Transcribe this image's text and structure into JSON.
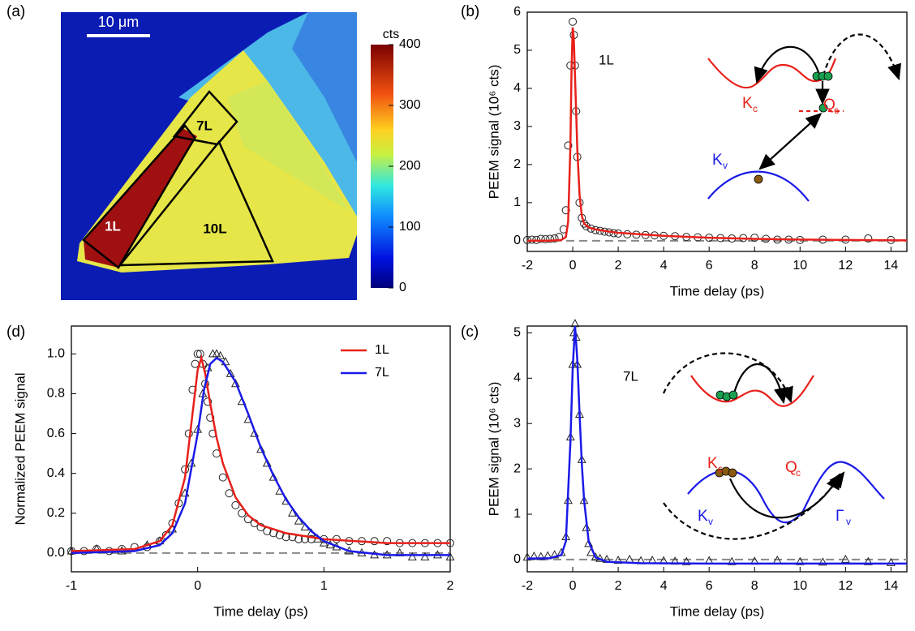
{
  "chart_data": [
    {
      "type": "image",
      "panel": "(a)",
      "scale_bar": "10 μm",
      "regions": [
        "1L",
        "7L",
        "10L"
      ],
      "colorbar": {
        "title": "cts",
        "lim": [
          0,
          400
        ],
        "ticks": [
          0,
          100,
          200,
          300,
          400
        ]
      }
    },
    {
      "type": "line",
      "panel": "(b)",
      "xlabel": "Time delay (ps)",
      "ylabel": "PEEM signal (10⁶ cts)",
      "xlim": [
        -2,
        14.7
      ],
      "xticks": [
        -2,
        0,
        2,
        4,
        6,
        8,
        10,
        12,
        14
      ],
      "ylim": [
        -0.28,
        6
      ],
      "yticks": [
        0,
        1,
        2,
        3,
        4,
        5,
        6
      ],
      "hline": 0,
      "annotation": "1L",
      "inset_labels": [
        {
          "text": "K",
          "sub": "c",
          "color": "#e8201a"
        },
        {
          "text": "Q",
          "sub": "c",
          "color": "#e8201a"
        },
        {
          "text": "K",
          "sub": "v",
          "color": "#1a1ae8"
        }
      ],
      "series": [
        {
          "marker": "circle",
          "color": "#222222",
          "x": [
            -2,
            -1.8,
            -1.6,
            -1.4,
            -1.2,
            -1,
            -0.8,
            -0.6,
            -0.4,
            -0.3,
            -0.2,
            -0.1,
            0,
            0.05,
            0.1,
            0.15,
            0.2,
            0.3,
            0.4,
            0.5,
            0.6,
            0.8,
            1,
            1.2,
            1.4,
            1.6,
            1.8,
            2,
            2.4,
            2.8,
            3.2,
            3.6,
            4,
            4.5,
            5,
            5.5,
            6,
            6.5,
            7,
            7.5,
            8,
            8.5,
            9,
            9.5,
            10,
            11,
            12,
            13,
            14
          ],
          "values": [
            0.02,
            0.03,
            0.02,
            0.05,
            0.04,
            0.05,
            0.06,
            0.1,
            0.3,
            0.8,
            2.5,
            4.6,
            5.75,
            5.4,
            4.6,
            3.4,
            2.2,
            1.0,
            0.6,
            0.45,
            0.38,
            0.32,
            0.28,
            0.26,
            0.24,
            0.22,
            0.2,
            0.19,
            0.17,
            0.16,
            0.15,
            0.14,
            0.13,
            0.12,
            0.1,
            0.09,
            0.08,
            0.07,
            0.06,
            0.07,
            0.08,
            0.05,
            0.03,
            0.03,
            0.02,
            0.03,
            0.03,
            0.06,
            0.02
          ]
        },
        {
          "color": "#e8201a",
          "x": [
            -2,
            -1,
            -0.5,
            -0.3,
            -0.2,
            -0.1,
            -0.05,
            0,
            0.05,
            0.1,
            0.2,
            0.3,
            0.4,
            0.5,
            0.7,
            1,
            1.5,
            2,
            3,
            4,
            6,
            8,
            10,
            12,
            14.7
          ],
          "values": [
            0,
            0,
            0.02,
            0.1,
            0.5,
            2.5,
            4.5,
            5.6,
            5.3,
            4.3,
            2.4,
            1.2,
            0.65,
            0.45,
            0.35,
            0.3,
            0.25,
            0.21,
            0.17,
            0.13,
            0.08,
            0.05,
            0.03,
            0.02,
            0.01
          ]
        }
      ]
    },
    {
      "type": "line",
      "panel": "(c)",
      "xlabel": "Time delay (ps)",
      "ylabel": "PEEM signal (10⁶ cts)",
      "xlim": [
        -2,
        14.7
      ],
      "xticks": [
        -2,
        0,
        2,
        4,
        6,
        8,
        10,
        12,
        14
      ],
      "ylim": [
        -0.27,
        5.15
      ],
      "yticks": [
        0,
        1,
        2,
        3,
        4,
        5
      ],
      "hline": 0,
      "annotation": "7L",
      "inset_labels": [
        {
          "text": "K",
          "sub": "c",
          "color": "#e8201a"
        },
        {
          "text": "Q",
          "sub": "c",
          "color": "#e8201a"
        },
        {
          "text": "K",
          "sub": "v",
          "color": "#1a1ae8"
        },
        {
          "text": "Γ",
          "sub": "v",
          "color": "#1a1ae8"
        }
      ],
      "series": [
        {
          "marker": "triangle",
          "color": "#222222",
          "x": [
            -2,
            -1.7,
            -1.4,
            -1.1,
            -0.8,
            -0.5,
            -0.3,
            -0.2,
            -0.1,
            0,
            0.05,
            0.1,
            0.15,
            0.2,
            0.3,
            0.4,
            0.5,
            0.6,
            0.7,
            0.8,
            1,
            1.2,
            1.5,
            2,
            2.5,
            3,
            3.5,
            4,
            4.5,
            5,
            6,
            7,
            8,
            9,
            10,
            11,
            12,
            13,
            14
          ],
          "values": [
            0.05,
            0.07,
            0.06,
            0.08,
            0.1,
            0.15,
            0.5,
            1.3,
            2.7,
            4.3,
            5.0,
            5.2,
            4.9,
            4.3,
            3.2,
            2.2,
            1.3,
            0.7,
            0.35,
            0.15,
            0.05,
            0.02,
            0,
            -0.02,
            0,
            -0.03,
            -0.02,
            -0.03,
            -0.04,
            -0.05,
            -0.03,
            -0.05,
            -0.04,
            -0.02,
            -0.05,
            -0.06,
            0,
            -0.05,
            -0.07
          ]
        },
        {
          "color": "#1a1ae8",
          "x": [
            -2,
            -1,
            -0.5,
            -0.3,
            -0.1,
            0,
            0.1,
            0.2,
            0.3,
            0.4,
            0.5,
            0.7,
            1,
            1.5,
            3,
            6,
            10,
            14.7
          ],
          "values": [
            0.02,
            0.03,
            0.1,
            0.4,
            2.6,
            4.2,
            5.15,
            4.4,
            3.2,
            2.1,
            1.3,
            0.4,
            0.05,
            -0.05,
            -0.08,
            -0.09,
            -0.09,
            -0.09
          ]
        }
      ]
    },
    {
      "type": "line",
      "panel": "(d)",
      "xlabel": "Time delay (ps)",
      "ylabel": "Normalized PEEM signal",
      "xlim": [
        -1,
        2
      ],
      "xticks": [
        -1,
        0,
        1,
        2
      ],
      "ylim": [
        -0.094,
        1.14
      ],
      "yticks": [
        {
          "value": 0,
          "label": "0.0"
        },
        0.2,
        0.4,
        0.6,
        0.8,
        {
          "value": 1,
          "label": "1.0"
        }
      ],
      "hline": 0,
      "legend": "upper right",
      "series": [
        {
          "marker": "circle",
          "color": "#222222",
          "x": [
            -1,
            -0.9,
            -0.8,
            -0.7,
            -0.6,
            -0.5,
            -0.4,
            -0.3,
            -0.25,
            -0.2,
            -0.15,
            -0.1,
            -0.07,
            -0.04,
            -0.02,
            0,
            0.02,
            0.04,
            0.06,
            0.08,
            0.1,
            0.12,
            0.15,
            0.2,
            0.25,
            0.3,
            0.35,
            0.4,
            0.45,
            0.5,
            0.55,
            0.6,
            0.65,
            0.7,
            0.75,
            0.8,
            0.85,
            0.9,
            1,
            1.1,
            1.2,
            1.3,
            1.4,
            1.5,
            1.6,
            1.7,
            1.8,
            1.9,
            2
          ],
          "values": [
            0.01,
            0.01,
            0.02,
            0.01,
            0.02,
            0.03,
            0.03,
            0.06,
            0.09,
            0.15,
            0.25,
            0.42,
            0.6,
            0.82,
            0.95,
            1.0,
            1.0,
            0.95,
            0.85,
            0.76,
            0.68,
            0.6,
            0.5,
            0.38,
            0.3,
            0.24,
            0.2,
            0.17,
            0.15,
            0.13,
            0.11,
            0.1,
            0.09,
            0.08,
            0.08,
            0.07,
            0.07,
            0.07,
            0.07,
            0.07,
            0.06,
            0.06,
            0.06,
            0.06,
            0.05,
            0.05,
            0.05,
            0.05,
            0.05
          ]
        },
        {
          "marker": "triangle",
          "color": "#222222",
          "x": [
            -1,
            -0.8,
            -0.6,
            -0.4,
            -0.3,
            -0.2,
            -0.1,
            -0.05,
            0,
            0.04,
            0.08,
            0.12,
            0.15,
            0.18,
            0.22,
            0.26,
            0.3,
            0.35,
            0.4,
            0.45,
            0.5,
            0.55,
            0.6,
            0.65,
            0.7,
            0.75,
            0.8,
            0.85,
            0.9,
            0.95,
            1,
            1.05,
            1.1,
            1.2,
            1.3,
            1.4,
            1.5,
            1.6,
            1.7,
            1.8,
            1.9,
            2
          ],
          "values": [
            0.01,
            0.02,
            0.01,
            0.04,
            0.06,
            0.12,
            0.3,
            0.45,
            0.62,
            0.8,
            0.93,
            1.0,
            1.0,
            0.99,
            0.96,
            0.9,
            0.85,
            0.76,
            0.67,
            0.6,
            0.52,
            0.45,
            0.38,
            0.31,
            0.26,
            0.2,
            0.16,
            0.13,
            0.1,
            0.07,
            0.05,
            0.04,
            0.03,
            0.01,
            0,
            -0.01,
            -0.01,
            0,
            -0.02,
            -0.02,
            -0.01,
            -0.02
          ]
        },
        {
          "name": "1L",
          "color": "#e8201a",
          "x": [
            -1,
            -0.5,
            -0.3,
            -0.2,
            -0.1,
            -0.05,
            0,
            0.03,
            0.06,
            0.1,
            0.15,
            0.2,
            0.3,
            0.4,
            0.5,
            0.7,
            1,
            1.5,
            2
          ],
          "values": [
            0.01,
            0.02,
            0.06,
            0.14,
            0.38,
            0.65,
            0.92,
            0.98,
            0.9,
            0.75,
            0.58,
            0.45,
            0.28,
            0.19,
            0.14,
            0.1,
            0.07,
            0.05,
            0.05
          ]
        },
        {
          "name": "7L",
          "color": "#1a1ae8",
          "x": [
            -1,
            -0.5,
            -0.3,
            -0.2,
            -0.1,
            0,
            0.05,
            0.1,
            0.15,
            0.2,
            0.3,
            0.4,
            0.5,
            0.6,
            0.7,
            0.8,
            0.9,
            1,
            1.2,
            1.5,
            2
          ],
          "values": [
            0,
            0.01,
            0.04,
            0.1,
            0.25,
            0.6,
            0.82,
            0.95,
            0.98,
            0.96,
            0.86,
            0.7,
            0.53,
            0.39,
            0.27,
            0.18,
            0.11,
            0.06,
            0.01,
            -0.01,
            -0.01
          ]
        }
      ]
    }
  ]
}
